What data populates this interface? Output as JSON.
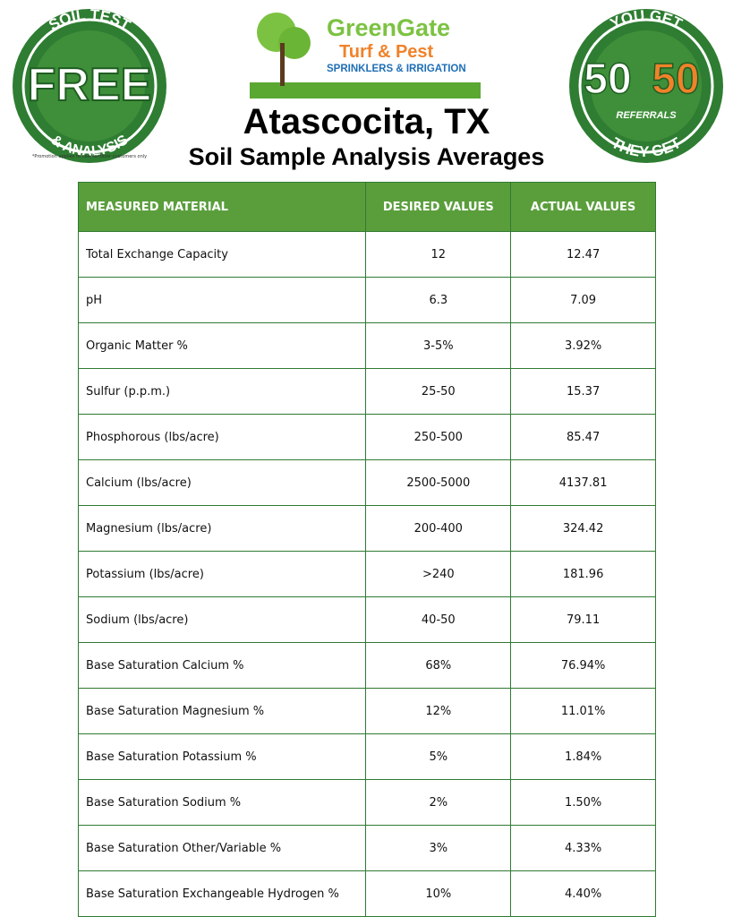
{
  "badge_left": {
    "top": "SOIL TEST",
    "main": "FREE",
    "bottom": "& ANALYSIS",
    "note": "*Promotion applies to new fertilizer customers only"
  },
  "logo": {
    "name_green": "Green",
    "name_gate": "Gate",
    "line2": "Turf & Pest",
    "line3": "SPRINKLERS & IRRIGATION"
  },
  "badge_right": {
    "top": "YOU GET",
    "left_number": "50",
    "right_number": "50",
    "middle": "REFERRALS",
    "bottom": "THEY GET"
  },
  "header": {
    "title": "Atascocita, TX",
    "subtitle": "Soil Sample Analysis Averages"
  },
  "table": {
    "header": [
      "MEASURED MATERIAL",
      "DESIRED VALUES",
      "ACTUAL VALUES"
    ],
    "rows": [
      [
        "Total Exchange Capacity",
        "12",
        "12.47"
      ],
      [
        "pH",
        "6.3",
        "7.09"
      ],
      [
        "Organic Matter %",
        "3-5%",
        "3.92%"
      ],
      [
        "Sulfur (p.p.m.)",
        "25-50",
        "15.37"
      ],
      [
        "Phosphorous (lbs/acre)",
        "250-500",
        "85.47"
      ],
      [
        "Calcium (lbs/acre)",
        "2500-5000",
        "4137.81"
      ],
      [
        "Magnesium (lbs/acre)",
        "200-400",
        "324.42"
      ],
      [
        "Potassium (lbs/acre)",
        ">240",
        "181.96"
      ],
      [
        "Sodium (lbs/acre)",
        "40-50",
        "79.11"
      ],
      [
        "Base Saturation Calcium %",
        "68%",
        "76.94%"
      ],
      [
        "Base Saturation Magnesium %",
        "12%",
        "11.01%"
      ],
      [
        "Base Saturation Potassium %",
        "5%",
        "1.84%"
      ],
      [
        "Base Saturation Sodium %",
        "2%",
        "1.50%"
      ],
      [
        "Base Saturation Other/Variable %",
        "3%",
        "4.33%"
      ],
      [
        "Base Saturation Exchangeable Hydrogen %",
        "10%",
        "4.40%"
      ]
    ]
  }
}
